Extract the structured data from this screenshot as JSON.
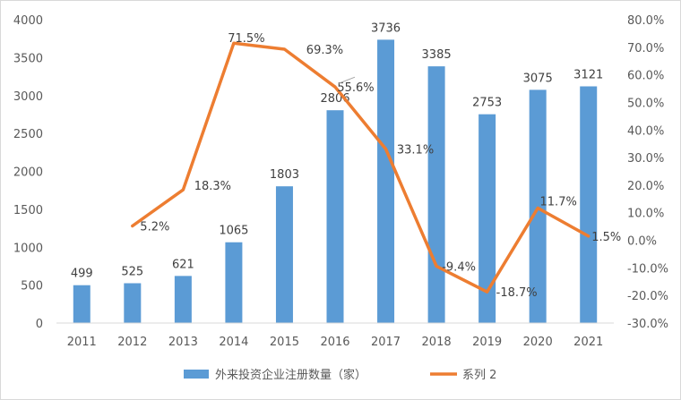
{
  "chart_data": {
    "type": "bar+line",
    "categories": [
      "2011",
      "2012",
      "2013",
      "2014",
      "2015",
      "2016",
      "2017",
      "2018",
      "2019",
      "2020",
      "2021"
    ],
    "series": [
      {
        "name": "外来投资企业注册数量（家）",
        "type": "bar",
        "axis": "left",
        "color": "#5b9bd5",
        "values": [
          499,
          525,
          621,
          1065,
          1803,
          2806,
          3736,
          3385,
          2753,
          3075,
          3121
        ],
        "labels": [
          "499",
          "525",
          "621",
          "1065",
          "1803",
          "2806",
          "3736",
          "3385",
          "2753",
          "3075",
          "3121"
        ]
      },
      {
        "name": "系列 2",
        "type": "line",
        "axis": "right",
        "color": "#ed7d31",
        "values": [
          null,
          5.2,
          18.3,
          71.5,
          69.3,
          55.6,
          33.1,
          -9.4,
          -18.7,
          11.7,
          1.5
        ],
        "labels": [
          null,
          "5.2%",
          "18.3%",
          "71.5%",
          "69.3%",
          "55.6%",
          "33.1%",
          "-9.4%",
          "-18.7%",
          "11.7%",
          "1.5%"
        ]
      }
    ],
    "y_left": {
      "range": [
        0,
        4000
      ],
      "ticks": [
        "0",
        "500",
        "1000",
        "1500",
        "2000",
        "2500",
        "3000",
        "3500",
        "4000"
      ]
    },
    "y_right": {
      "range": [
        -30,
        80
      ],
      "unit": "%",
      "ticks": [
        "-30.0%",
        "-20.0%",
        "-10.0%",
        "0.0%",
        "10.0%",
        "20.0%",
        "30.0%",
        "40.0%",
        "50.0%",
        "60.0%",
        "70.0%",
        "80.0%"
      ]
    },
    "grid": false,
    "legend_position": "bottom"
  }
}
